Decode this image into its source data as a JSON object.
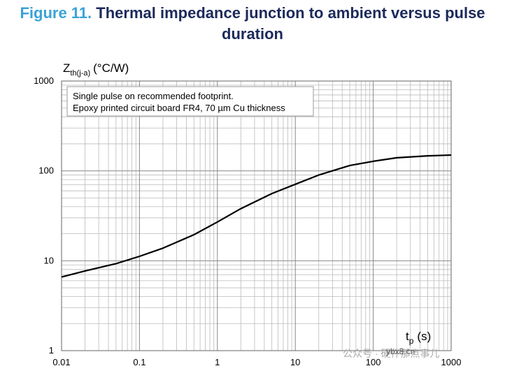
{
  "chart_data": {
    "type": "line",
    "figure_label": "Figure 11.",
    "title": "Thermal impedance junction to ambient versus pulse duration",
    "y_label": {
      "symbol": "Z",
      "subscript": "th(j-a)",
      "unit": "(°C/W)"
    },
    "x_label": {
      "symbol": "t",
      "subscript": "p",
      "unit": "(s)"
    },
    "annotation": [
      "Single pulse on recommended footprint.",
      "Epoxy printed circuit board FR4, 70 µm Cu thickness"
    ],
    "watermark": [
      "公众号 · 硬件那点事儿",
      "ybx8.cn"
    ],
    "xscale": "log",
    "yscale": "log",
    "grid": true,
    "minor_grid": true,
    "xlim": [
      0.01,
      1000
    ],
    "ylim": [
      1,
      1000
    ],
    "xticks": [
      0.01,
      0.1,
      1,
      10,
      100,
      1000
    ],
    "yticks": [
      1,
      10,
      100,
      1000
    ],
    "series": [
      {
        "name": "Zth(j-a)",
        "color": "#000000",
        "x": [
          0.01,
          0.02,
          0.05,
          0.1,
          0.2,
          0.5,
          1,
          2,
          5,
          10,
          20,
          50,
          100,
          200,
          500,
          1000
        ],
        "values": [
          6.6,
          7.7,
          9.3,
          11.2,
          13.8,
          19.5,
          27,
          38,
          56,
          71,
          90,
          115,
          128,
          140,
          147,
          150
        ]
      }
    ]
  }
}
